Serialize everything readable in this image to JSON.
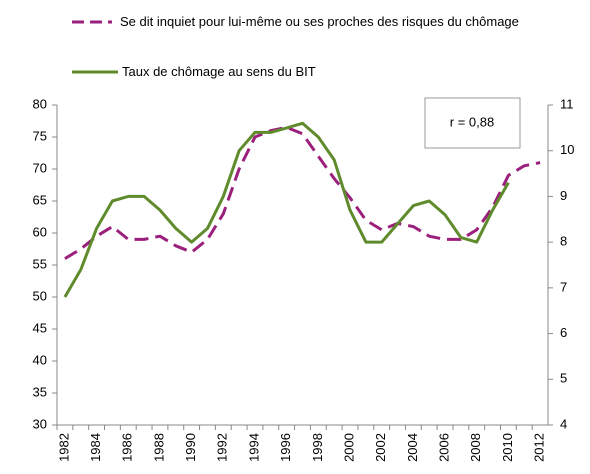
{
  "chart_data": {
    "type": "line",
    "annotation": "r = 0,88",
    "categories": [
      "1982",
      null,
      "1984",
      null,
      "1986",
      null,
      "1988",
      null,
      "1990",
      null,
      "1992",
      null,
      "1994",
      null,
      "1996",
      null,
      "1998",
      null,
      "2000",
      null,
      "2002",
      null,
      "2004",
      null,
      "2006",
      null,
      "2008",
      null,
      "2010",
      null,
      "2012"
    ],
    "series": [
      {
        "name": "Se dit inquiet pour lui-même ou ses proches des risques du chômage",
        "color": "#9b1f7c",
        "dashed": true,
        "values": [
          56,
          57.5,
          59.5,
          61,
          59,
          59,
          59.5,
          58,
          57,
          59,
          63,
          70,
          75,
          76,
          76.5,
          75.5,
          72,
          68.5,
          65.5,
          62,
          60.5,
          61.5,
          61,
          59.5,
          59,
          59,
          60.5,
          64,
          69,
          70.5,
          71
        ]
      },
      {
        "name": "Taux de chômage au sens du BIT",
        "color": "#5f8b2d",
        "dashed": false,
        "axis": "y2",
        "values": [
          6.8,
          7.4,
          8.3,
          8.9,
          9.0,
          9.0,
          8.7,
          8.3,
          8.0,
          8.3,
          9.0,
          10.0,
          10.4,
          10.4,
          10.5,
          10.6,
          10.3,
          9.8,
          8.7,
          8.0,
          8.0,
          8.4,
          8.8,
          8.9,
          8.6,
          8.1,
          8.0,
          8.7,
          9.3,
          null,
          null
        ]
      }
    ],
    "ylim": [
      30,
      80
    ],
    "yticks": [
      30,
      35,
      40,
      45,
      50,
      55,
      60,
      65,
      70,
      75,
      80
    ],
    "y2lim": [
      4,
      11
    ],
    "y2ticks": [
      4,
      5,
      6,
      7,
      8,
      9,
      10,
      11
    ],
    "grid": false
  }
}
